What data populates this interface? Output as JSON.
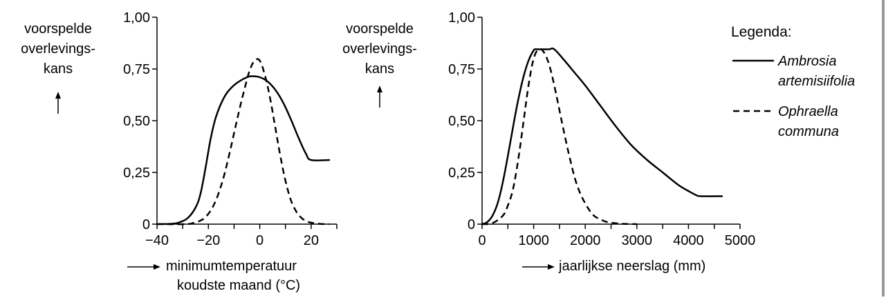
{
  "chart_data": [
    {
      "type": "line",
      "ylabel": [
        "voorspelde",
        "overlevings-",
        "kans"
      ],
      "xlabel": [
        "minimumtemperatuur",
        "koudste maand (°C)"
      ],
      "xlim": [
        -40,
        30
      ],
      "ylim": [
        0,
        1
      ],
      "x_ticks": [
        -40,
        -30,
        -20,
        -10,
        0,
        10,
        20,
        30
      ],
      "x_tick_labels": [
        "−40",
        "",
        "−20",
        "",
        "0",
        "",
        "20",
        ""
      ],
      "y_ticks": [
        0,
        0.25,
        0.5,
        0.75,
        1
      ],
      "y_tick_labels": [
        "0",
        "0,25",
        "0,50",
        "0,75",
        "1,00"
      ],
      "series": [
        {
          "name": "Ambrosia artemisiifolia",
          "style": "solid",
          "x": [
            -40,
            -34,
            -31,
            -28,
            -25,
            -23,
            -21,
            -19,
            -17,
            -14,
            -11,
            -8,
            -5,
            -3,
            0,
            3,
            6,
            9,
            12,
            15,
            18,
            20,
            27
          ],
          "y": [
            0,
            0.002,
            0.01,
            0.03,
            0.08,
            0.15,
            0.28,
            0.42,
            0.52,
            0.61,
            0.66,
            0.69,
            0.71,
            0.715,
            0.71,
            0.69,
            0.65,
            0.59,
            0.51,
            0.42,
            0.34,
            0.31,
            0.31
          ]
        },
        {
          "name": "Ophraella communa",
          "style": "dashed",
          "x": [
            -40,
            -29,
            -26,
            -24,
            -22,
            -20,
            -18,
            -16,
            -14,
            -12,
            -10,
            -8,
            -6,
            -4,
            -2,
            0,
            2,
            4,
            6,
            8,
            10,
            12,
            14,
            16,
            18,
            20,
            22,
            24,
            27
          ],
          "y": [
            0,
            0,
            0.005,
            0.012,
            0.025,
            0.05,
            0.09,
            0.15,
            0.23,
            0.33,
            0.44,
            0.55,
            0.65,
            0.74,
            0.79,
            0.79,
            0.72,
            0.61,
            0.47,
            0.33,
            0.21,
            0.12,
            0.065,
            0.033,
            0.015,
            0.007,
            0.003,
            0.001,
            0
          ]
        }
      ]
    },
    {
      "type": "line",
      "ylabel": [
        "voorspelde",
        "overlevings-",
        "kans"
      ],
      "xlabel": [
        "jaarlijkse neerslag (mm)"
      ],
      "xlim": [
        0,
        5000
      ],
      "ylim": [
        0,
        1
      ],
      "x_ticks": [
        0,
        500,
        1000,
        1500,
        2000,
        2500,
        3000,
        3500,
        4000,
        4500,
        5000
      ],
      "x_tick_labels": [
        "0",
        "",
        "1000",
        "",
        "2000",
        "",
        "3000",
        "",
        "4000",
        "",
        "5000"
      ],
      "y_ticks": [
        0,
        0.25,
        0.5,
        0.75,
        1
      ],
      "y_tick_labels": [
        "0",
        "0,25",
        "0,50",
        "0,75",
        "1,00"
      ],
      "series": [
        {
          "name": "Ambrosia artemisiifolia",
          "style": "solid",
          "x": [
            0,
            100,
            200,
            300,
            400,
            500,
            600,
            700,
            800,
            900,
            1000,
            1050,
            1100,
            1200,
            1300,
            1400,
            1600,
            1800,
            2000,
            2300,
            2600,
            2900,
            3200,
            3500,
            3800,
            4000,
            4150,
            4250,
            4650
          ],
          "y": [
            0,
            0.01,
            0.04,
            0.1,
            0.2,
            0.33,
            0.47,
            0.6,
            0.71,
            0.79,
            0.84,
            0.845,
            0.845,
            0.845,
            0.845,
            0.845,
            0.79,
            0.73,
            0.67,
            0.57,
            0.47,
            0.38,
            0.31,
            0.25,
            0.19,
            0.16,
            0.14,
            0.135,
            0.135
          ]
        },
        {
          "name": "Ophraella communa",
          "style": "dashed",
          "x": [
            0,
            200,
            400,
            500,
            600,
            700,
            800,
            900,
            1000,
            1100,
            1200,
            1300,
            1400,
            1500,
            1600,
            1700,
            1800,
            1900,
            2000,
            2100,
            2200,
            2400,
            2600,
            2800,
            3000
          ],
          "y": [
            0,
            0.005,
            0.04,
            0.09,
            0.17,
            0.31,
            0.49,
            0.67,
            0.8,
            0.845,
            0.83,
            0.77,
            0.67,
            0.55,
            0.43,
            0.32,
            0.22,
            0.15,
            0.1,
            0.06,
            0.035,
            0.012,
            0.004,
            0.001,
            0
          ]
        }
      ]
    }
  ],
  "legend": {
    "title": "Legenda:",
    "items": [
      {
        "style": "solid",
        "lines": [
          "Ambrosia",
          "artemisiifolia"
        ]
      },
      {
        "style": "dashed",
        "lines": [
          "Ophraella",
          "communa"
        ]
      }
    ]
  }
}
